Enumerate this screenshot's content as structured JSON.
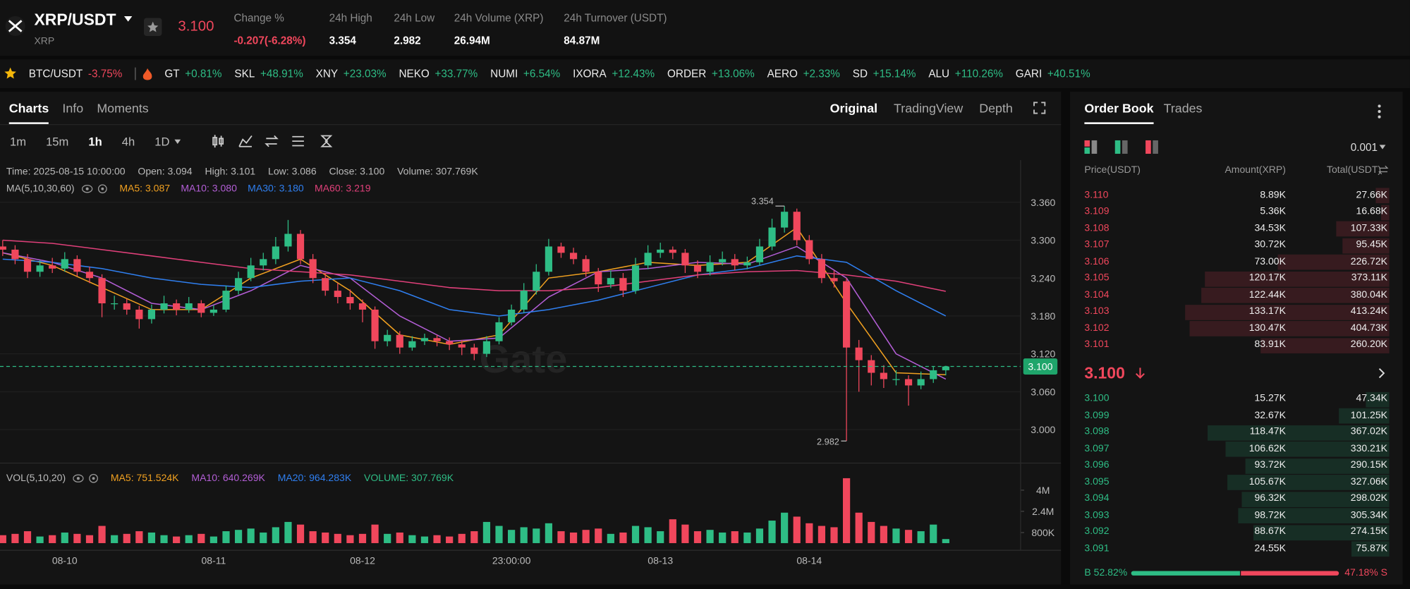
{
  "header": {
    "pair": "XRP/USDT",
    "base": "XRP",
    "price": "3.100",
    "stats": [
      {
        "label": "Change %",
        "value": "-0.207(-6.28%)"
      },
      {
        "label": "24h High",
        "value": "3.354"
      },
      {
        "label": "24h Low",
        "value": "2.982"
      },
      {
        "label": "24h Volume (XRP)",
        "value": "26.94M"
      },
      {
        "label": "24h Turnover (USDT)",
        "value": "84.87M"
      }
    ]
  },
  "ticker": [
    {
      "name": "BTC/USDT",
      "change": "-3.75%"
    },
    {
      "name": "GT",
      "change": "+0.81%"
    },
    {
      "name": "SKL",
      "change": "+48.91%"
    },
    {
      "name": "XNY",
      "change": "+23.03%"
    },
    {
      "name": "NEKO",
      "change": "+33.77%"
    },
    {
      "name": "NUMI",
      "change": "+6.54%"
    },
    {
      "name": "IXORA",
      "change": "+12.43%"
    },
    {
      "name": "ORDER",
      "change": "+13.06%"
    },
    {
      "name": "AERO",
      "change": "+2.33%"
    },
    {
      "name": "SD",
      "change": "+15.14%"
    },
    {
      "name": "ALU",
      "change": "+110.26%"
    },
    {
      "name": "GARI",
      "change": "+40.51%"
    }
  ],
  "tabs": [
    "Charts",
    "Info",
    "Moments"
  ],
  "views": [
    "Original",
    "TradingView",
    "Depth"
  ],
  "intervals": [
    "1m",
    "15m",
    "1h",
    "4h",
    "1D"
  ],
  "ohlc_info": [
    "Time: 2025-08-15 10:00:00",
    "Open: 3.094",
    "High: 3.101",
    "Low: 3.086",
    "Close: 3.100",
    "Volume: 307.769K"
  ],
  "chart_data": {
    "type": "candlestick",
    "ma_title": "MA(5,10,30,60)",
    "up_color": "#2ebd85",
    "down_color": "#f0475c",
    "categories": [
      null,
      null,
      null,
      null,
      null,
      "08-10",
      null,
      null,
      null,
      null,
      null,
      null,
      null,
      null,
      null,
      null,
      null,
      "08-11",
      null,
      null,
      null,
      null,
      null,
      null,
      null,
      null,
      null,
      null,
      null,
      "08-12",
      null,
      null,
      null,
      null,
      null,
      null,
      null,
      null,
      null,
      null,
      null,
      "23:00:00",
      null,
      null,
      null,
      null,
      null,
      null,
      null,
      null,
      null,
      null,
      null,
      "08-13",
      null,
      null,
      null,
      null,
      null,
      null,
      null,
      null,
      null,
      null,
      null,
      "08-14",
      null,
      null,
      null,
      null,
      null,
      null,
      null,
      null,
      null,
      null,
      null
    ],
    "candles": [
      [
        3.29,
        3.3,
        3.275,
        3.285
      ],
      [
        3.285,
        3.292,
        3.262,
        3.27
      ],
      [
        3.27,
        3.278,
        3.24,
        3.25
      ],
      [
        3.25,
        3.268,
        3.242,
        3.26
      ],
      [
        3.26,
        3.272,
        3.248,
        3.255
      ],
      [
        3.255,
        3.281,
        3.25,
        3.27
      ],
      [
        3.27,
        3.276,
        3.243,
        3.25
      ],
      [
        3.25,
        3.258,
        3.232,
        3.24
      ],
      [
        3.24,
        3.246,
        3.178,
        3.2
      ],
      [
        3.2,
        3.212,
        3.19,
        3.2
      ],
      [
        3.2,
        3.207,
        3.182,
        3.19
      ],
      [
        3.19,
        3.196,
        3.16,
        3.175
      ],
      [
        3.175,
        3.198,
        3.168,
        3.19
      ],
      [
        3.19,
        3.212,
        3.184,
        3.2
      ],
      [
        3.2,
        3.206,
        3.181,
        3.19
      ],
      [
        3.19,
        3.21,
        3.185,
        3.2
      ],
      [
        3.2,
        3.205,
        3.178,
        3.185
      ],
      [
        3.185,
        3.197,
        3.18,
        3.19
      ],
      [
        3.19,
        3.228,
        3.186,
        3.22
      ],
      [
        3.22,
        3.25,
        3.214,
        3.24
      ],
      [
        3.24,
        3.272,
        3.235,
        3.26
      ],
      [
        3.26,
        3.28,
        3.252,
        3.27
      ],
      [
        3.27,
        3.305,
        3.262,
        3.29
      ],
      [
        3.29,
        3.332,
        3.282,
        3.31
      ],
      [
        3.31,
        3.316,
        3.262,
        3.27
      ],
      [
        3.27,
        3.278,
        3.232,
        3.24
      ],
      [
        3.24,
        3.248,
        3.212,
        3.22
      ],
      [
        3.22,
        3.232,
        3.2,
        3.21
      ],
      [
        3.21,
        3.222,
        3.19,
        3.2
      ],
      [
        3.2,
        3.206,
        3.17,
        3.19
      ],
      [
        3.19,
        3.195,
        3.128,
        3.14
      ],
      [
        3.14,
        3.158,
        3.132,
        3.15
      ],
      [
        3.15,
        3.156,
        3.12,
        3.13
      ],
      [
        3.13,
        3.148,
        3.125,
        3.14
      ],
      [
        3.14,
        3.152,
        3.134,
        3.145
      ],
      [
        3.145,
        3.15,
        3.132,
        3.14
      ],
      [
        3.14,
        3.146,
        3.126,
        3.135
      ],
      [
        3.135,
        3.142,
        3.118,
        3.13
      ],
      [
        3.13,
        3.136,
        3.11,
        3.12
      ],
      [
        3.12,
        3.148,
        3.115,
        3.14
      ],
      [
        3.14,
        3.178,
        3.135,
        3.17
      ],
      [
        3.17,
        3.198,
        3.165,
        3.19
      ],
      [
        3.19,
        3.232,
        3.185,
        3.22
      ],
      [
        3.22,
        3.262,
        3.214,
        3.25
      ],
      [
        3.25,
        3.302,
        3.244,
        3.29
      ],
      [
        3.29,
        3.296,
        3.272,
        3.28
      ],
      [
        3.28,
        3.288,
        3.262,
        3.27
      ],
      [
        3.27,
        3.276,
        3.242,
        3.25
      ],
      [
        3.25,
        3.256,
        3.218,
        3.23
      ],
      [
        3.23,
        3.252,
        3.224,
        3.24
      ],
      [
        3.24,
        3.248,
        3.21,
        3.22
      ],
      [
        3.22,
        3.272,
        3.215,
        3.26
      ],
      [
        3.26,
        3.292,
        3.254,
        3.28
      ],
      [
        3.28,
        3.296,
        3.272,
        3.285
      ],
      [
        3.285,
        3.29,
        3.27,
        3.28
      ],
      [
        3.28,
        3.286,
        3.248,
        3.26
      ],
      [
        3.26,
        3.268,
        3.24,
        3.25
      ],
      [
        3.25,
        3.276,
        3.244,
        3.265
      ],
      [
        3.265,
        3.282,
        3.26,
        3.27
      ],
      [
        3.27,
        3.278,
        3.252,
        3.26
      ],
      [
        3.26,
        3.274,
        3.254,
        3.265
      ],
      [
        3.265,
        3.302,
        3.26,
        3.29
      ],
      [
        3.29,
        3.334,
        3.284,
        3.32
      ],
      [
        3.32,
        3.354,
        3.312,
        3.345
      ],
      [
        3.345,
        3.35,
        3.292,
        3.3
      ],
      [
        3.3,
        3.308,
        3.262,
        3.27
      ],
      [
        3.27,
        3.278,
        3.232,
        3.24
      ],
      [
        3.24,
        3.252,
        3.225,
        3.235
      ],
      [
        3.235,
        3.24,
        2.982,
        3.13
      ],
      [
        3.13,
        3.142,
        3.06,
        3.11
      ],
      [
        3.11,
        3.118,
        3.07,
        3.09
      ],
      [
        3.09,
        3.102,
        3.066,
        3.08
      ],
      [
        3.08,
        3.094,
        3.07,
        3.08
      ],
      [
        3.08,
        3.086,
        3.038,
        3.07
      ],
      [
        3.07,
        3.092,
        3.064,
        3.08
      ],
      [
        3.08,
        3.1,
        3.074,
        3.094
      ],
      [
        3.094,
        3.101,
        3.086,
        3.1
      ]
    ],
    "ylim": [
      2.947,
      3.424
    ],
    "yticks": [
      {
        "value": 3.0,
        "label": "3.000"
      },
      {
        "value": 3.06,
        "label": "3.060"
      },
      {
        "value": 3.12,
        "label": "3.120"
      },
      {
        "value": 3.18,
        "label": "3.180"
      },
      {
        "value": 3.24,
        "label": "3.240"
      },
      {
        "value": 3.3,
        "label": "3.300"
      },
      {
        "value": 3.36,
        "label": "3.360"
      }
    ],
    "grid": true,
    "series": [
      {
        "name": "MA5: 3.087",
        "color": "#f0a020",
        "x": [
          0,
          4,
          8,
          12,
          16,
          20,
          24,
          28,
          32,
          36,
          40,
          44,
          48,
          52,
          56,
          60,
          64,
          68,
          72,
          76
        ],
        "values": [
          3.28,
          3.26,
          3.225,
          3.19,
          3.19,
          3.24,
          3.27,
          3.22,
          3.15,
          3.135,
          3.15,
          3.24,
          3.25,
          3.265,
          3.26,
          3.265,
          3.32,
          3.2,
          3.09,
          3.087
        ]
      },
      {
        "name": "MA10: 3.080",
        "color": "#b35ed6",
        "x": [
          0,
          4,
          8,
          12,
          16,
          20,
          24,
          28,
          32,
          36,
          40,
          44,
          48,
          52,
          56,
          60,
          64,
          68,
          72,
          76
        ],
        "values": [
          3.28,
          3.265,
          3.24,
          3.2,
          3.19,
          3.22,
          3.26,
          3.24,
          3.18,
          3.14,
          3.145,
          3.21,
          3.25,
          3.255,
          3.265,
          3.262,
          3.29,
          3.24,
          3.12,
          3.08
        ]
      },
      {
        "name": "MA30: 3.180",
        "color": "#2f7ff0",
        "x": [
          0,
          4,
          8,
          12,
          16,
          20,
          24,
          28,
          32,
          36,
          40,
          44,
          48,
          52,
          56,
          60,
          64,
          68,
          72,
          76
        ],
        "values": [
          3.27,
          3.265,
          3.255,
          3.24,
          3.23,
          3.225,
          3.235,
          3.24,
          3.22,
          3.19,
          3.18,
          3.19,
          3.205,
          3.225,
          3.245,
          3.255,
          3.275,
          3.265,
          3.22,
          3.18
        ]
      },
      {
        "name": "MA60: 3.219",
        "color": "#e0407a",
        "x": [
          0,
          4,
          8,
          12,
          16,
          20,
          24,
          28,
          32,
          36,
          40,
          44,
          48,
          52,
          56,
          60,
          64,
          68,
          72,
          76
        ],
        "values": [
          3.3,
          3.295,
          3.285,
          3.275,
          3.265,
          3.255,
          3.25,
          3.245,
          3.235,
          3.225,
          3.22,
          3.22,
          3.225,
          3.235,
          3.245,
          3.25,
          3.252,
          3.245,
          3.235,
          3.219
        ]
      }
    ],
    "high_label": "3.354",
    "low_label": "2.982",
    "price_line_label": "3.100",
    "watermark": "Gate",
    "volume": {
      "title": "VOL(5,10,20)",
      "values": [
        600000,
        700000,
        900000,
        500000,
        600000,
        800000,
        700000,
        600000,
        1300000,
        600000,
        700000,
        900000,
        800000,
        600000,
        500000,
        600000,
        700000,
        500000,
        900000,
        1000000,
        1100000,
        800000,
        1200000,
        1600000,
        1400000,
        900000,
        800000,
        700000,
        600000,
        700000,
        1400000,
        700000,
        800000,
        600000,
        500000,
        600000,
        500000,
        700000,
        900000,
        1600000,
        1300000,
        1000000,
        1200000,
        1100000,
        1500000,
        900000,
        800000,
        1000000,
        1100000,
        700000,
        800000,
        1300000,
        1200000,
        900000,
        1800000,
        1400000,
        900000,
        1000000,
        800000,
        900000,
        800000,
        1100000,
        1700000,
        2300000,
        2000000,
        1500000,
        1300000,
        1200000,
        4900000,
        2300000,
        1600000,
        1300000,
        1100000,
        1000000,
        900000,
        1400000,
        307769
      ],
      "ylim": [
        0,
        5700000
      ],
      "yticks": [
        {
          "value": 800000,
          "label": "800K"
        },
        {
          "value": 2400000,
          "label": "2.4M"
        },
        {
          "value": 4000000,
          "label": "4M"
        }
      ],
      "legend": [
        {
          "text": "MA5: 751.524K",
          "color": "#f0a020"
        },
        {
          "text": "MA10: 640.269K",
          "color": "#b35ed6"
        },
        {
          "text": "MA20: 964.283K",
          "color": "#2f7ff0"
        },
        {
          "text": "VOLUME: 307.769K",
          "color": "#2ebd85"
        }
      ]
    }
  },
  "order_book": {
    "tabs": [
      "Order Book",
      "Trades"
    ],
    "precision": "0.001",
    "columns": [
      "Price(USDT)",
      "Amount(XRP)",
      "Total(USDT)"
    ],
    "asks": [
      {
        "price": "3.110",
        "amount": {
          "value": 8890,
          "label": "8.89K"
        },
        "total": "27.66K"
      },
      {
        "price": "3.109",
        "amount": {
          "value": 5360,
          "label": "5.36K"
        },
        "total": "16.68K"
      },
      {
        "price": "3.108",
        "amount": {
          "value": 34530,
          "label": "34.53K"
        },
        "total": "107.33K"
      },
      {
        "price": "3.107",
        "amount": {
          "value": 30720,
          "label": "30.72K"
        },
        "total": "95.45K"
      },
      {
        "price": "3.106",
        "amount": {
          "value": 73000,
          "label": "73.00K"
        },
        "total": "226.72K"
      },
      {
        "price": "3.105",
        "amount": {
          "value": 120170,
          "label": "120.17K"
        },
        "total": "373.11K"
      },
      {
        "price": "3.104",
        "amount": {
          "value": 122440,
          "label": "122.44K"
        },
        "total": "380.04K"
      },
      {
        "price": "3.103",
        "amount": {
          "value": 133170,
          "label": "133.17K"
        },
        "total": "413.24K"
      },
      {
        "price": "3.102",
        "amount": {
          "value": 130470,
          "label": "130.47K"
        },
        "total": "404.73K"
      },
      {
        "price": "3.101",
        "amount": {
          "value": 83910,
          "label": "83.91K"
        },
        "total": "260.20K"
      }
    ],
    "mid_price": "3.100",
    "bids": [
      {
        "price": "3.100",
        "amount": {
          "value": 15270,
          "label": "15.27K"
        },
        "total": "47.34K"
      },
      {
        "price": "3.099",
        "amount": {
          "value": 32670,
          "label": "32.67K"
        },
        "total": "101.25K"
      },
      {
        "price": "3.098",
        "amount": {
          "value": 118470,
          "label": "118.47K"
        },
        "total": "367.02K"
      },
      {
        "price": "3.097",
        "amount": {
          "value": 106620,
          "label": "106.62K"
        },
        "total": "330.21K"
      },
      {
        "price": "3.096",
        "amount": {
          "value": 93720,
          "label": "93.72K"
        },
        "total": "290.15K"
      },
      {
        "price": "3.095",
        "amount": {
          "value": 105670,
          "label": "105.67K"
        },
        "total": "327.06K"
      },
      {
        "price": "3.094",
        "amount": {
          "value": 96320,
          "label": "96.32K"
        },
        "total": "298.02K"
      },
      {
        "price": "3.093",
        "amount": {
          "value": 98720,
          "label": "98.72K"
        },
        "total": "305.34K"
      },
      {
        "price": "3.092",
        "amount": {
          "value": 88670,
          "label": "88.67K"
        },
        "total": "274.15K"
      },
      {
        "price": "3.091",
        "amount": {
          "value": 24550,
          "label": "24.55K"
        },
        "total": "75.87K"
      }
    ],
    "buy_ratio": {
      "value": 52.82,
      "label": "B 52.82%"
    },
    "sell_ratio": {
      "value": 47.18,
      "label": "47.18% S"
    }
  }
}
